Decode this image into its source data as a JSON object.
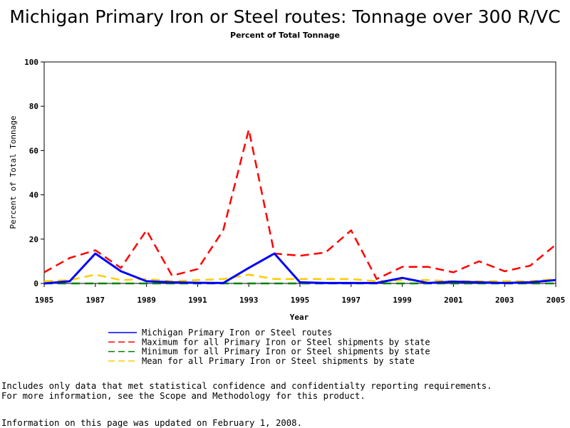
{
  "chart_data": {
    "type": "line",
    "title": "Michigan Primary Iron or Steel routes: Tonnage over 300 R/VC",
    "subtitle": "Percent of Total Tonnage",
    "xlabel": "Year",
    "ylabel": "Percent of Total Tonnage",
    "xlim": [
      1985,
      2005
    ],
    "ylim": [
      0,
      100
    ],
    "xticks": [
      1985,
      1987,
      1989,
      1991,
      1993,
      1995,
      1997,
      1999,
      2001,
      2003,
      2005
    ],
    "yticks": [
      0,
      20,
      40,
      60,
      80,
      100
    ],
    "grid": false,
    "legend_position": "bottom",
    "x": [
      1985,
      1986,
      1987,
      1988,
      1989,
      1990,
      1991,
      1992,
      1993,
      1994,
      1995,
      1996,
      1997,
      1998,
      1999,
      2000,
      2001,
      2002,
      2003,
      2004,
      2005
    ],
    "series": [
      {
        "name": "Michigan Primary Iron or Steel routes",
        "color": "#0000ff",
        "dash": "solid",
        "values": [
          0,
          1,
          13.5,
          5.5,
          1,
          0.5,
          0.3,
          0.2,
          7,
          13.5,
          0.5,
          0.2,
          0.2,
          0.2,
          2.5,
          0.2,
          0.8,
          0.5,
          0.2,
          0.5,
          1.5
        ]
      },
      {
        "name": "Maximum for all Primary Iron or Steel shipments by state",
        "color": "#ff0000",
        "dash": "dashed",
        "values": [
          5,
          11.5,
          15,
          7,
          24,
          3.5,
          6.5,
          24,
          69.5,
          13.5,
          12.5,
          14,
          24,
          2,
          7.5,
          7.5,
          5,
          10,
          5.5,
          8,
          17.5
        ]
      },
      {
        "name": "Minimum for all Primary Iron or Steel shipments by state",
        "color": "#008000",
        "dash": "dashed",
        "values": [
          0,
          0,
          0,
          0,
          0,
          0,
          0,
          0,
          0,
          0,
          0,
          0,
          0,
          0,
          0,
          0,
          0,
          0,
          0,
          0,
          0
        ]
      },
      {
        "name": "Mean for all Primary Iron or Steel shipments by state",
        "color": "#ffcc00",
        "dash": "dashed",
        "values": [
          1,
          1.5,
          4,
          1.5,
          2,
          1,
          1.5,
          2,
          4,
          2,
          2,
          2,
          2,
          1,
          1.5,
          1.5,
          1,
          1,
          1,
          1,
          2
        ]
      }
    ]
  },
  "notes": {
    "line1": "Includes only data that met statistical confidence and confidentialty reporting requirements.",
    "line2": "For more information, see the Scope and Methodology for this product.",
    "updated": "Information on this page was updated on February 1, 2008."
  }
}
